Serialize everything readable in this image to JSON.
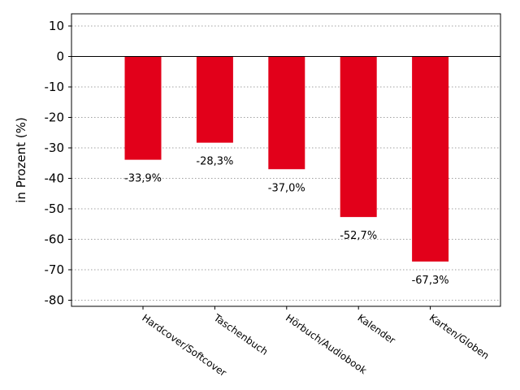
{
  "chart_data": {
    "type": "bar",
    "title": "",
    "xlabel": "",
    "ylabel": "in Prozent (%)",
    "categories": [
      "Hardcover/Softcover",
      "Taschenbuch",
      "Hörbuch/Audiobook",
      "Kalender",
      "Karten/Globen"
    ],
    "values": [
      -33.9,
      -28.3,
      -37.0,
      -52.7,
      -67.3
    ],
    "data_labels": [
      "-33,9%",
      "-28,3%",
      "-37,0%",
      "-52,7%",
      "-67,3%"
    ],
    "ylim": [
      -82,
      14
    ],
    "yticks": [
      10,
      0,
      -10,
      -20,
      -30,
      -40,
      -50,
      -60,
      -70,
      -80
    ],
    "ytick_labels": [
      "10",
      "0",
      "-10",
      "-20",
      "-30",
      "-40",
      "-50",
      "-60",
      "-70",
      "-80"
    ],
    "grid": true,
    "legend": "none",
    "bar_color": "#e2001a"
  }
}
